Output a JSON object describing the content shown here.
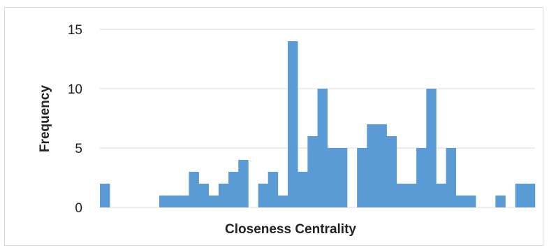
{
  "chart_data": {
    "type": "bar",
    "title": "",
    "xlabel": "Closeness Centrality",
    "ylabel": "Frequency",
    "ylim": [
      0,
      15
    ],
    "yticks": [
      0,
      5,
      10,
      15
    ],
    "grid": "horizontal",
    "legend": "none",
    "bar_color": "#5b9bd5",
    "values": [
      2,
      0,
      0,
      0,
      0,
      0,
      1,
      1,
      1,
      3,
      2,
      1,
      2,
      3,
      4,
      0,
      2,
      3,
      1,
      14,
      3,
      6,
      10,
      5,
      5,
      0,
      5,
      7,
      7,
      6,
      2,
      2,
      5,
      10,
      2,
      5,
      1,
      1,
      0,
      0,
      1,
      0,
      2,
      2
    ]
  }
}
